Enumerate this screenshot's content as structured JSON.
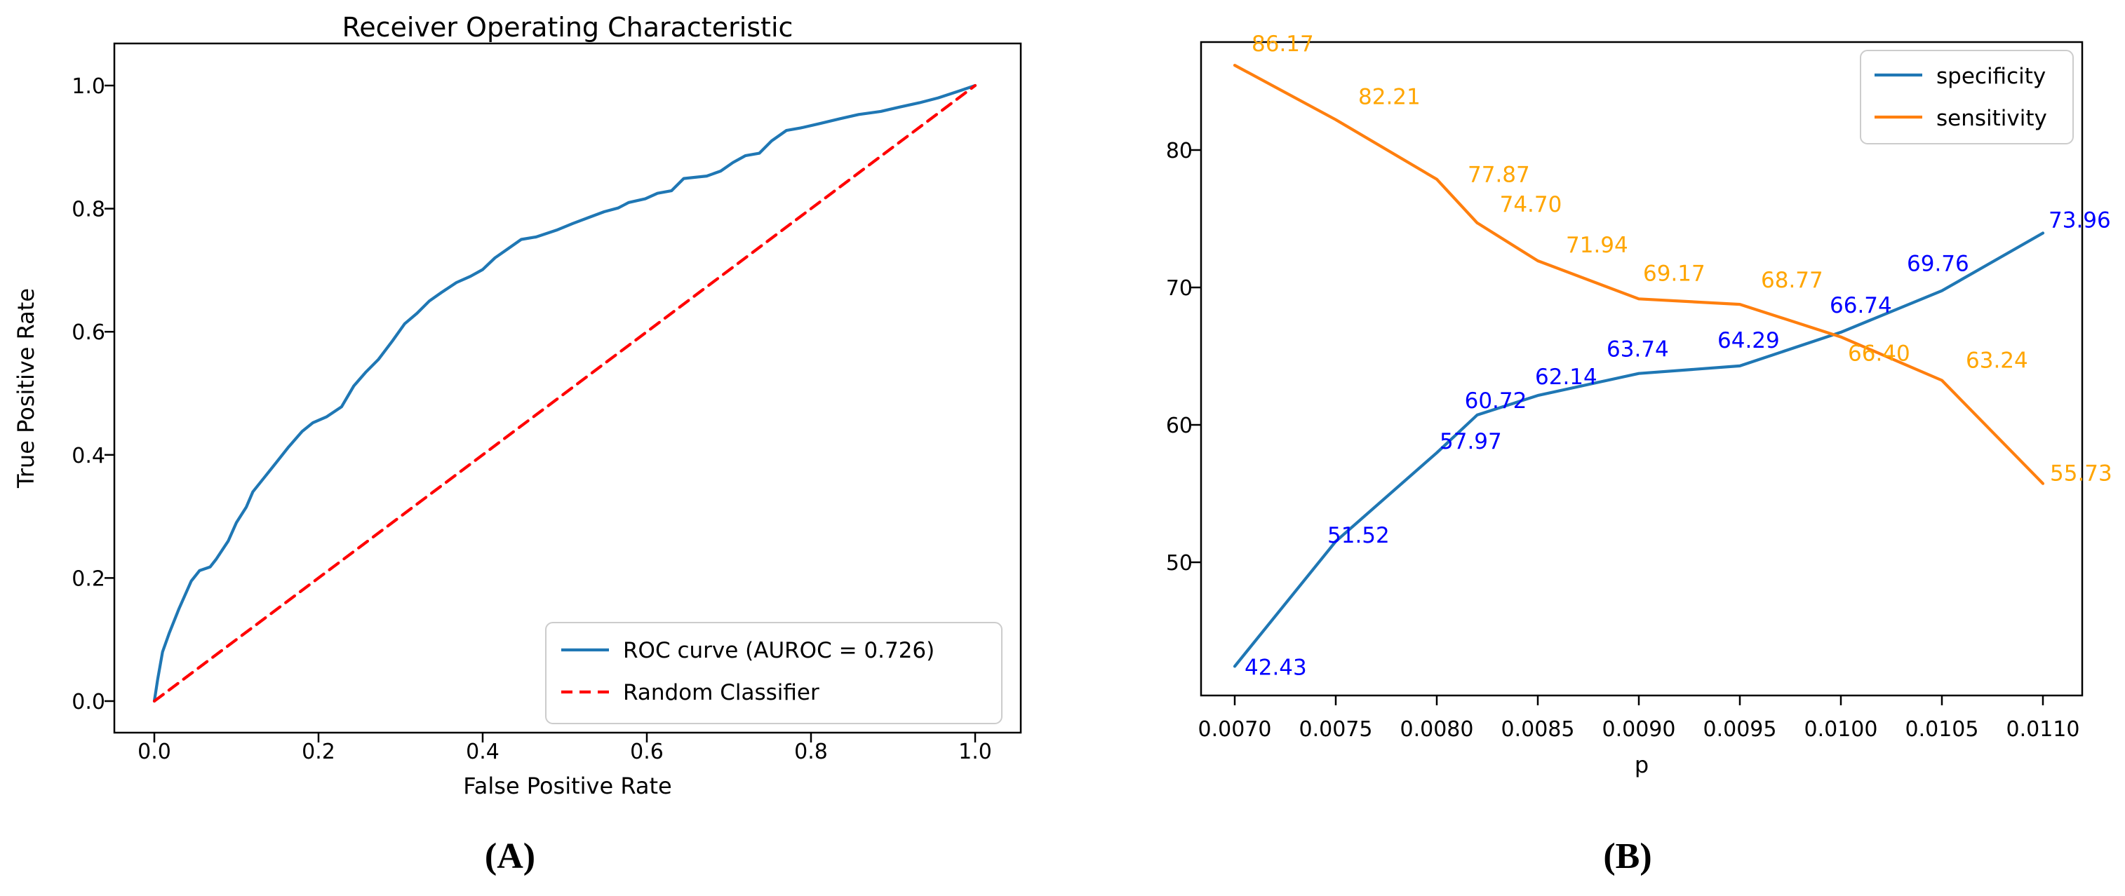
{
  "figure": {
    "captions": {
      "a": "(A)",
      "b": "(B)"
    }
  },
  "chart_data": [
    {
      "id": "roc",
      "type": "line",
      "title": "Receiver Operating Characteristic",
      "xlabel": "False Positive Rate",
      "ylabel": "True Positive Rate",
      "xlim": [
        -0.05,
        1.05
      ],
      "ylim": [
        -0.05,
        1.05
      ],
      "grid": false,
      "legend_position": "lower right",
      "xticks": [
        "0.0",
        "0.2",
        "0.4",
        "0.6",
        "0.8",
        "1.0"
      ],
      "yticks": [
        "0.0",
        "0.2",
        "0.4",
        "0.6",
        "0.8",
        "1.0"
      ],
      "series": [
        {
          "name": "ROC curve (AUROC = 0.726)",
          "color": "#1f77b4",
          "dash": "solid",
          "points": [
            [
              0,
              0
            ],
            [
              0.004,
              0.035
            ],
            [
              0.01,
              0.08
            ],
            [
              0.018,
              0.11
            ],
            [
              0.03,
              0.15
            ],
            [
              0.045,
              0.195
            ],
            [
              0.055,
              0.212
            ],
            [
              0.068,
              0.218
            ],
            [
              0.075,
              0.23
            ],
            [
              0.09,
              0.26
            ],
            [
              0.1,
              0.29
            ],
            [
              0.112,
              0.315
            ],
            [
              0.12,
              0.34
            ],
            [
              0.135,
              0.365
            ],
            [
              0.15,
              0.39
            ],
            [
              0.163,
              0.412
            ],
            [
              0.18,
              0.438
            ],
            [
              0.193,
              0.452
            ],
            [
              0.21,
              0.462
            ],
            [
              0.228,
              0.478
            ],
            [
              0.243,
              0.512
            ],
            [
              0.258,
              0.535
            ],
            [
              0.273,
              0.555
            ],
            [
              0.29,
              0.585
            ],
            [
              0.305,
              0.613
            ],
            [
              0.32,
              0.63
            ],
            [
              0.335,
              0.65
            ],
            [
              0.35,
              0.664
            ],
            [
              0.368,
              0.68
            ],
            [
              0.385,
              0.69
            ],
            [
              0.4,
              0.701
            ],
            [
              0.415,
              0.72
            ],
            [
              0.43,
              0.734
            ],
            [
              0.447,
              0.75
            ],
            [
              0.465,
              0.754
            ],
            [
              0.49,
              0.765
            ],
            [
              0.51,
              0.776
            ],
            [
              0.53,
              0.786
            ],
            [
              0.548,
              0.795
            ],
            [
              0.565,
              0.801
            ],
            [
              0.578,
              0.81
            ],
            [
              0.598,
              0.816
            ],
            [
              0.613,
              0.825
            ],
            [
              0.63,
              0.829
            ],
            [
              0.645,
              0.849
            ],
            [
              0.673,
              0.853
            ],
            [
              0.69,
              0.861
            ],
            [
              0.705,
              0.875
            ],
            [
              0.72,
              0.886
            ],
            [
              0.737,
              0.89
            ],
            [
              0.752,
              0.91
            ],
            [
              0.77,
              0.927
            ],
            [
              0.787,
              0.931
            ],
            [
              0.81,
              0.938
            ],
            [
              0.835,
              0.946
            ],
            [
              0.858,
              0.953
            ],
            [
              0.885,
              0.958
            ],
            [
              0.908,
              0.965
            ],
            [
              0.932,
              0.972
            ],
            [
              0.955,
              0.98
            ],
            [
              0.978,
              0.99
            ],
            [
              1,
              1
            ]
          ]
        },
        {
          "name": "Random Classifier",
          "color": "#ff0000",
          "dash": "dashed",
          "points": [
            [
              0,
              0
            ],
            [
              1,
              1
            ]
          ]
        }
      ]
    },
    {
      "id": "tradeoff",
      "type": "line",
      "title": "",
      "xlabel": "p",
      "ylabel": "",
      "grid": false,
      "legend_position": "upper right",
      "xticks": [
        "0.0070",
        "0.0075",
        "0.0080",
        "0.0085",
        "0.0090",
        "0.0095",
        "0.0100",
        "0.0105",
        "0.0110"
      ],
      "yticks": [
        "50",
        "60",
        "70",
        "80"
      ],
      "x": [
        0.007,
        0.0075,
        0.008,
        0.0082,
        0.0085,
        0.009,
        0.0095,
        0.01,
        0.0105,
        0.011
      ],
      "series": [
        {
          "name": "specificity",
          "color": "#1f77b4",
          "label_color": "#0000ff",
          "values": [
            42.43,
            51.52,
            57.97,
            60.72,
            62.14,
            63.74,
            64.29,
            66.74,
            69.76,
            73.96
          ],
          "point_labels": [
            "42.43",
            "51.52",
            "57.97",
            "60.72",
            "62.14",
            "63.74",
            "64.29",
            "66.74",
            "69.76",
            "73.96"
          ]
        },
        {
          "name": "sensitivity",
          "color": "#ff7f0e",
          "label_color": "#ffa500",
          "values": [
            86.17,
            82.21,
            77.87,
            74.7,
            71.94,
            69.17,
            68.77,
            66.4,
            63.24,
            55.73
          ],
          "point_labels": [
            "86.17",
            "82.21",
            "77.87",
            "74.70",
            "71.94",
            "69.17",
            "68.77",
            "66.40",
            "63.24",
            "55.73"
          ]
        }
      ]
    }
  ]
}
